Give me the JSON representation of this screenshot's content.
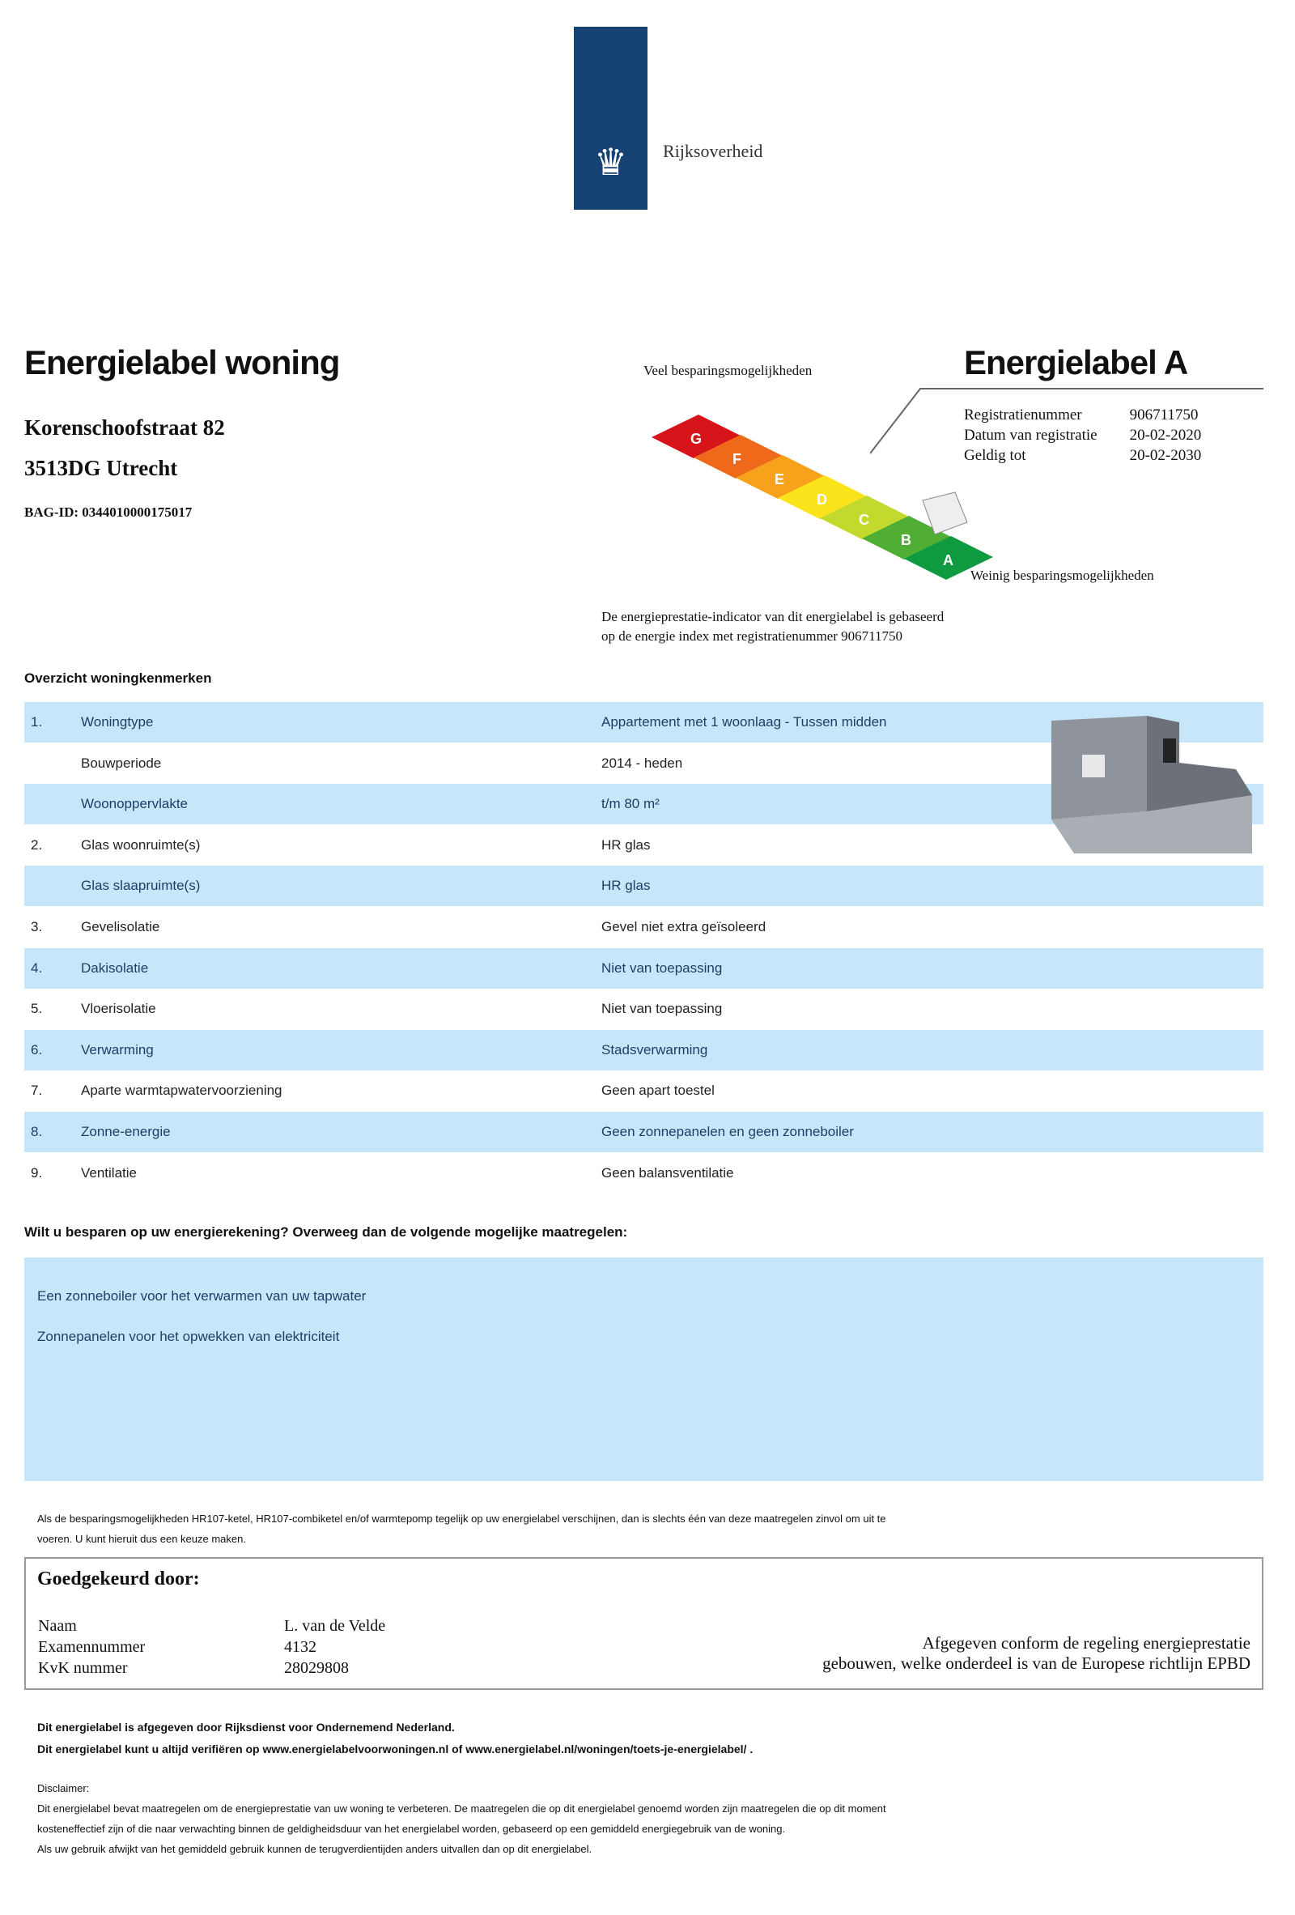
{
  "logo": {
    "text": "Rijksoverheid"
  },
  "header": {
    "title": "Energielabel woning",
    "street": "Korenschoofstraat 82",
    "city": "3513DG Utrecht",
    "bag_id": "BAG-ID: 0344010000175017"
  },
  "label": {
    "title": "Energielabel A",
    "class": "A",
    "scale_top": "Veel besparingsmogelijkheden",
    "scale_bottom": "Weinig besparingsmogelijkheden",
    "classes": [
      "G",
      "F",
      "E",
      "D",
      "C",
      "B",
      "A"
    ],
    "colors": [
      "#d7141a",
      "#ee6a1a",
      "#f7a21b",
      "#fbe31b",
      "#c4d92e",
      "#4fae33",
      "#119b40"
    ],
    "registration": [
      {
        "k": "Registratienummer",
        "v": "906711750"
      },
      {
        "k": "Datum van registratie",
        "v": "20-02-2020"
      },
      {
        "k": "Geldig tot",
        "v": "20-02-2030"
      }
    ],
    "indicator_note": [
      "De energieprestatie-indicator van dit energielabel is gebaseerd",
      "op de energie index met registratienummer 906711750"
    ]
  },
  "overview": {
    "title": "Overzicht woningkenmerken",
    "rows": [
      {
        "n": "1.",
        "label": "Woningtype",
        "value": "Appartement met 1 woonlaag - Tussen midden"
      },
      {
        "n": "",
        "label": "Bouwperiode",
        "value": "2014 - heden"
      },
      {
        "n": "",
        "label": "Woonoppervlakte",
        "value": "t/m 80 m²"
      },
      {
        "n": "2.",
        "label": "Glas woonruimte(s)",
        "value": "HR glas"
      },
      {
        "n": "",
        "label": "Glas slaapruimte(s)",
        "value": "HR glas"
      },
      {
        "n": "3.",
        "label": "Gevelisolatie",
        "value": "Gevel niet extra geïsoleerd"
      },
      {
        "n": "4.",
        "label": "Dakisolatie",
        "value": "Niet van toepassing"
      },
      {
        "n": "5.",
        "label": "Vloerisolatie",
        "value": "Niet van toepassing"
      },
      {
        "n": "6.",
        "label": "Verwarming",
        "value": "Stadsverwarming"
      },
      {
        "n": "7.",
        "label": "Aparte warmtapwatervoorziening",
        "value": "Geen apart toestel"
      },
      {
        "n": "8.",
        "label": "Zonne-energie",
        "value": "Geen zonnepanelen en geen zonneboiler"
      },
      {
        "n": "9.",
        "label": "Ventilatie",
        "value": "Geen balansventilatie"
      }
    ]
  },
  "measures": {
    "question": "Wilt u besparen op uw energierekening? Overweeg dan de volgende mogelijke maatregelen:",
    "items": [
      "Een zonneboiler voor het verwarmen van uw tapwater",
      "Zonnepanelen voor het opwekken van elektriciteit"
    ],
    "note": [
      "Als de besparingsmogelijkheden HR107-ketel, HR107-combiketel en/of warmtepomp tegelijk op uw energielabel verschijnen, dan is slechts één van deze maatregelen zinvol om uit te",
      "voeren. U kunt hieruit dus een keuze maken."
    ]
  },
  "approval": {
    "title": "Goedgekeurd door:",
    "fields": [
      {
        "k": "Naam",
        "v": "L. van de Velde"
      },
      {
        "k": "Examennummer",
        "v": "4132"
      },
      {
        "k": "KvK nummer",
        "v": "28029808"
      }
    ],
    "statement": [
      "Afgegeven conform de regeling energieprestatie",
      "gebouwen, welke onderdeel is van de Europese richtlijn EPBD"
    ]
  },
  "footer": {
    "lines": [
      "Dit energielabel is afgegeven door Rijksdienst voor Ondernemend Nederland.",
      "Dit energielabel kunt u altijd verifiëren op www.energielabelvoorwoningen.nl of www.energielabel.nl/woningen/toets-je-energielabel/ ."
    ],
    "disclaimer_title": "Disclaimer:",
    "disclaimer": [
      "Dit energielabel bevat maatregelen om de energieprestatie van uw woning te verbeteren. De maatregelen die op dit energielabel genoemd worden zijn maatregelen die op dit moment",
      "kosteneffectief zijn of die naar verwachting binnen de geldigheidsduur van het energielabel worden, gebaseerd op een gemiddeld energiegebruik van de woning.",
      "Als uw gebruik afwijkt van het gemiddeld gebruik kunnen de terugverdientijden anders uitvallen dan op dit energielabel."
    ]
  }
}
